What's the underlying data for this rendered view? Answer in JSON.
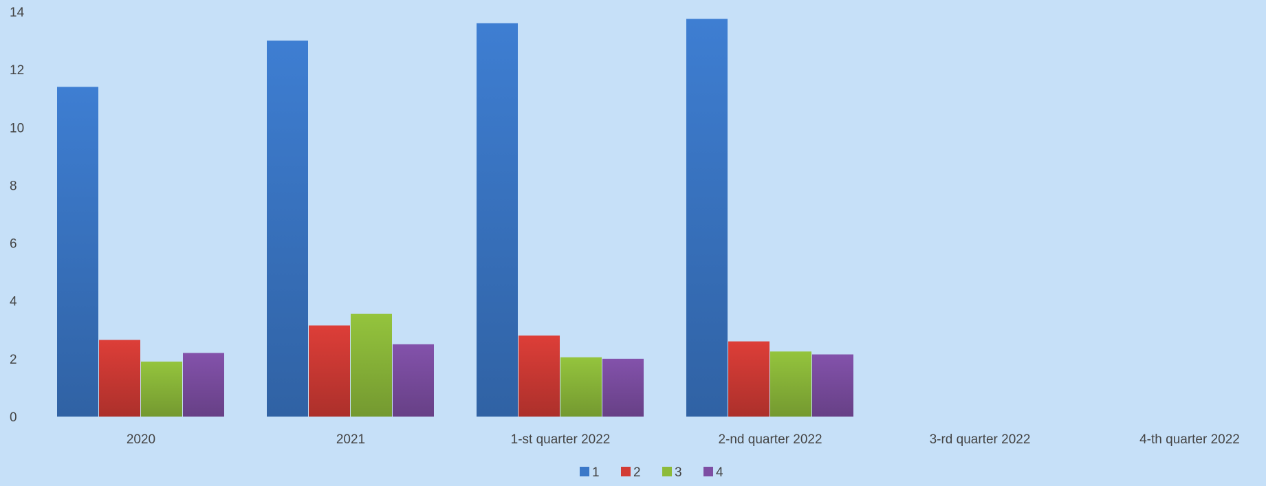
{
  "chart_data": {
    "type": "bar",
    "title": "",
    "xlabel": "",
    "ylabel": "",
    "ylim": [
      0,
      14
    ],
    "yticks": [
      0,
      2,
      4,
      6,
      8,
      10,
      12,
      14
    ],
    "grid": false,
    "legend_position": "bottom-center",
    "categories": [
      "2020",
      "2021",
      "1-st quarter 2022",
      "2-nd quarter 2022",
      "3-rd quarter 2022",
      "4-th quarter 2022"
    ],
    "series": [
      {
        "name": "1",
        "color": "#3b78c8",
        "values": [
          11.4,
          13.0,
          13.6,
          13.75,
          null,
          null
        ]
      },
      {
        "name": "2",
        "color": "#d23b35",
        "values": [
          2.65,
          3.15,
          2.8,
          2.6,
          null,
          null
        ]
      },
      {
        "name": "3",
        "color": "#8dbb3a",
        "values": [
          1.9,
          3.55,
          2.05,
          2.25,
          null,
          null
        ]
      },
      {
        "name": "4",
        "color": "#7d4ea3",
        "values": [
          2.2,
          2.5,
          2.0,
          2.15,
          null,
          null
        ]
      }
    ]
  }
}
